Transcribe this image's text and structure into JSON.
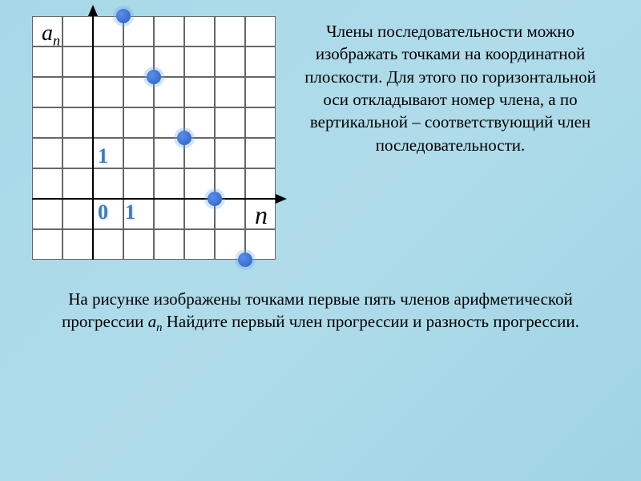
{
  "chart": {
    "type": "scatter",
    "grid": {
      "cols": 8,
      "rows": 8,
      "cell_size": 38,
      "origin_col": 2,
      "origin_row": 6,
      "background": "#ffffff",
      "gridline_color": "#666666",
      "gridline_width": 1
    },
    "axes": {
      "color": "#000000",
      "width": 2,
      "x_arrow": true,
      "y_arrow": true
    },
    "labels": {
      "y_axis": {
        "text": "a",
        "sub": "n",
        "fontsize": 28,
        "color": "#000000",
        "font_style": "italic"
      },
      "x_axis": {
        "text": "n",
        "fontsize": 32,
        "color": "#000000",
        "font_style": "italic"
      },
      "origin": {
        "text": "0",
        "fontsize": 26,
        "color": "#3a7ac8",
        "shadow_color": "#6699cc"
      },
      "tick_1_y": {
        "text": "1",
        "fontsize": 26,
        "color": "#3a7ac8"
      },
      "tick_1_x": {
        "text": "1",
        "fontsize": 26,
        "color": "#3a7ac8"
      }
    },
    "points": [
      {
        "n": 1,
        "a": 6
      },
      {
        "n": 2,
        "a": 4
      },
      {
        "n": 3,
        "a": 2
      },
      {
        "n": 4,
        "a": 0
      },
      {
        "n": 5,
        "a": -2
      }
    ],
    "point_style": {
      "radius": 9,
      "fill": "#2b5fc4",
      "glow_radius": 13,
      "glow_color": "#6aa8e8"
    }
  },
  "text": {
    "description": "Члены последовательности можно изображать точками на координатной плоскости. Для этого по горизонтальной оси откладывают номер члена, а по вертикальной – соответствующий член последовательности.",
    "question_part1": "На рисунке изображены точками первые пять членов арифметической прогрессии ",
    "question_var": "a",
    "question_var_sub": "n",
    "question_part2": " Найдите первый член прогрессии и разность прогрессии."
  },
  "colors": {
    "background_gradient_start": "#a8d8e8",
    "background_gradient_end": "#a0d4e4",
    "text": "#000000"
  }
}
